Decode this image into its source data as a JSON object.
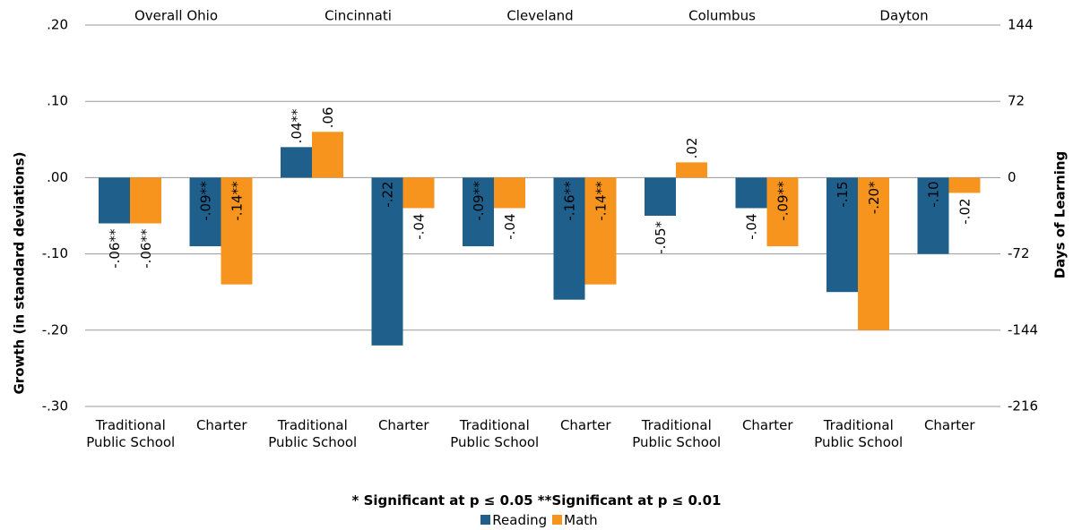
{
  "chart_data": {
    "type": "bar",
    "groups": [
      "Overall Ohio",
      "Cincinnati",
      "Cleveland",
      "Columbus",
      "Dayton"
    ],
    "categories": [
      "Traditional Public School",
      "Charter",
      "Traditional Public School",
      "Charter",
      "Traditional Public School",
      "Charter",
      "Traditional Public School",
      "Charter",
      "Traditional Public School",
      "Charter"
    ],
    "series": [
      {
        "name": "Reading",
        "color": "#1f5f8b",
        "values": [
          -0.06,
          -0.09,
          0.04,
          -0.22,
          -0.09,
          -0.16,
          -0.05,
          -0.04,
          -0.15,
          -0.1
        ],
        "value_labels": [
          "-.06**",
          "-.09**",
          ".04**",
          "-.22",
          "-.09**",
          "-.16**",
          "-.05*",
          "-.04",
          "-.15",
          "-.10"
        ]
      },
      {
        "name": "Math",
        "color": "#f7941d",
        "values": [
          -0.06,
          -0.14,
          0.06,
          -0.04,
          -0.04,
          -0.14,
          0.02,
          -0.09,
          -0.2,
          -0.02
        ],
        "value_labels": [
          "-.06**",
          "-.14**",
          ".06",
          "-.04",
          "-.04",
          "-.14**",
          ".02",
          "-.09**",
          "-.20*",
          "-.02"
        ]
      }
    ],
    "ylim": [
      -0.3,
      0.2
    ],
    "yticks": [
      {
        "value": 0.2,
        "label": ".20"
      },
      {
        "value": 0.1,
        "label": ".10"
      },
      {
        "value": 0,
        "label": ".00"
      },
      {
        "value": -0.1,
        "label": "-.10"
      },
      {
        "value": -0.2,
        "label": "-.20"
      },
      {
        "value": -0.3,
        "label": "-.30"
      }
    ],
    "y2lim": [
      -216,
      144
    ],
    "y2ticks": [
      144,
      72,
      0,
      -72,
      -144,
      -216
    ],
    "ylabel": "Growth (in standard deviations)",
    "y2label": "Days of Learning",
    "footnote": "* Significant at p ≤ 0.05  **Significant at p ≤ 0.01",
    "grid": true
  }
}
